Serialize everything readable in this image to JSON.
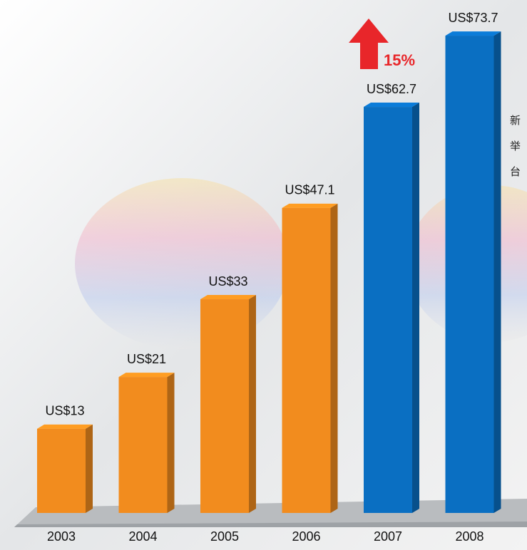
{
  "chart_data": {
    "type": "bar",
    "categories": [
      "2003",
      "2004",
      "2005",
      "2006",
      "2007",
      "2008"
    ],
    "values": [
      13,
      21,
      33,
      47.1,
      62.7,
      73.7
    ],
    "value_labels": [
      "US$13",
      "US$21",
      "US$33",
      "US$47.1",
      "US$62.7",
      "US$73.7"
    ],
    "colors": [
      "#f28c1e",
      "#f28c1e",
      "#f28c1e",
      "#f28c1e",
      "#0a6fc2",
      "#0a6fc2"
    ],
    "annotation": "15%",
    "side_text": [
      "新",
      "举",
      "台"
    ]
  }
}
